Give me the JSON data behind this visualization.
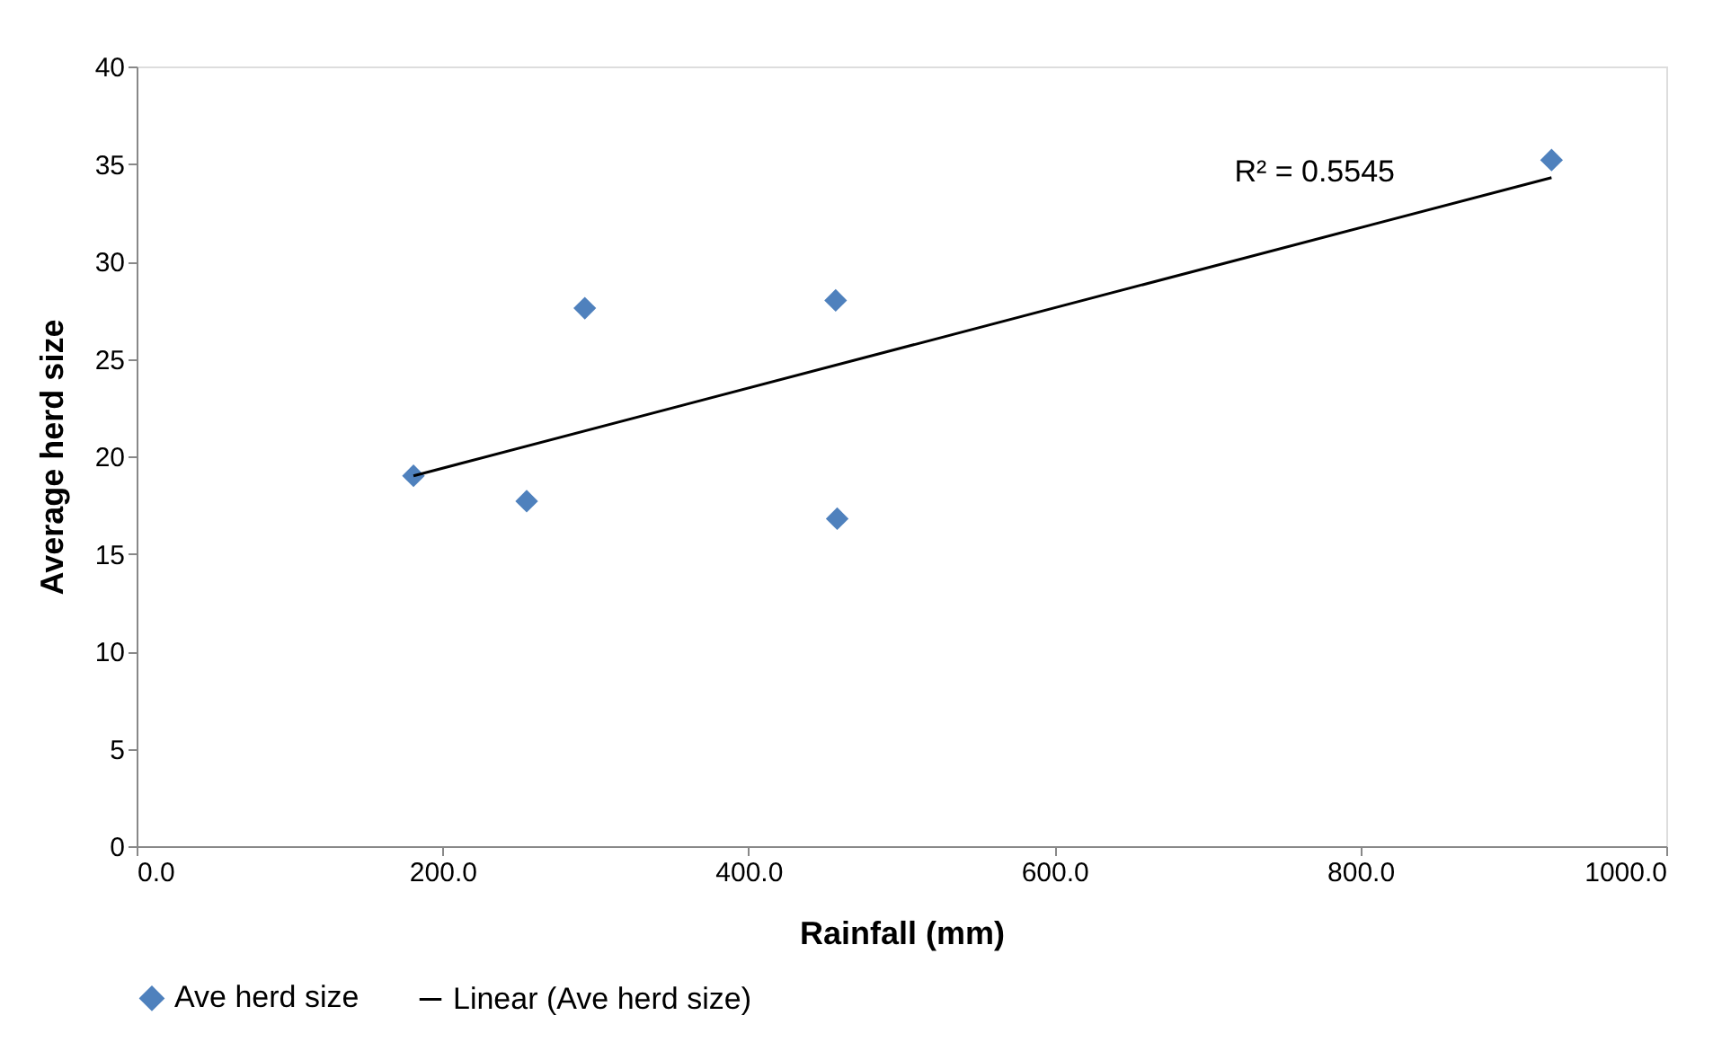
{
  "chart_data": {
    "type": "scatter",
    "xlabel": "Rainfall (mm)",
    "ylabel": "Average herd size",
    "series": [
      {
        "name": "Ave herd size",
        "type": "scatter",
        "color": "#4f81bd",
        "marker": "diamond",
        "x": [
          181,
          255,
          293,
          457,
          458,
          925
        ],
        "values": [
          19.0,
          17.7,
          27.6,
          28.0,
          16.8,
          35.2
        ]
      },
      {
        "name": "Linear (Ave herd size)",
        "type": "line",
        "color": "#000000",
        "marker": "none",
        "line_style": "solid",
        "x": [
          181,
          925
        ],
        "values": [
          19.0,
          34.3
        ]
      }
    ],
    "annotations": [
      "R² = 0.5545"
    ],
    "xlim": [
      0,
      1000
    ],
    "xticks": [
      {
        "value": 0,
        "label": "0.0"
      },
      {
        "value": 200,
        "label": "200.0"
      },
      {
        "value": 400,
        "label": "400.0"
      },
      {
        "value": 600,
        "label": "600.0"
      },
      {
        "value": 800,
        "label": "800.0"
      },
      {
        "value": 1000,
        "label": "1000.0"
      }
    ],
    "ylim": [
      0,
      40
    ],
    "yticks": [
      0,
      5,
      10,
      15,
      20,
      25,
      30,
      35,
      40
    ],
    "grid": false,
    "legend": "bottom"
  }
}
